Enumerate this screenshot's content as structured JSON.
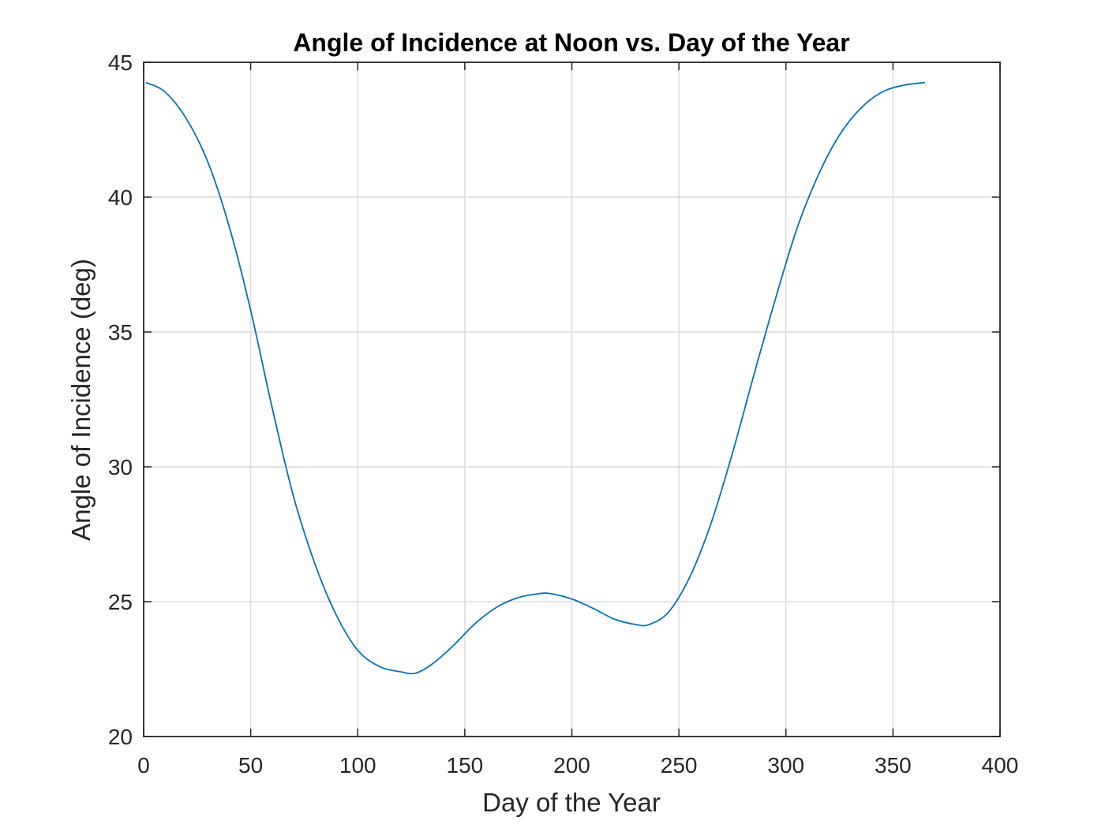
{
  "chart_data": {
    "type": "line",
    "title": "Angle of Incidence at Noon vs. Day of the Year",
    "xlabel": "Day of the Year",
    "ylabel": "Angle of Incidence (deg)",
    "xlim": [
      0,
      400
    ],
    "ylim": [
      20,
      45
    ],
    "xticks": [
      "0",
      "50",
      "100",
      "150",
      "200",
      "250",
      "300",
      "350",
      "400"
    ],
    "yticks": [
      "20",
      "25",
      "30",
      "35",
      "40",
      "45"
    ],
    "grid": true,
    "legend": false,
    "series": [
      {
        "color": "#0072BD",
        "x": [
          1,
          10,
          20,
          30,
          40,
          50,
          60,
          70,
          80,
          90,
          100,
          110,
          120,
          127,
          135,
          145,
          155,
          165,
          175,
          185,
          190,
          200,
          210,
          220,
          230,
          236,
          245,
          255,
          265,
          275,
          285,
          295,
          305,
          315,
          325,
          335,
          345,
          355,
          365
        ],
        "y": [
          44.25,
          43.9,
          42.9,
          41.3,
          38.9,
          35.8,
          32.2,
          28.9,
          26.4,
          24.5,
          23.2,
          22.6,
          22.4,
          22.35,
          22.7,
          23.4,
          24.2,
          24.8,
          25.15,
          25.3,
          25.3,
          25.1,
          24.75,
          24.35,
          24.15,
          24.15,
          24.6,
          25.9,
          27.9,
          30.5,
          33.4,
          36.2,
          38.8,
          40.8,
          42.3,
          43.3,
          43.9,
          44.15,
          44.25
        ]
      }
    ]
  }
}
